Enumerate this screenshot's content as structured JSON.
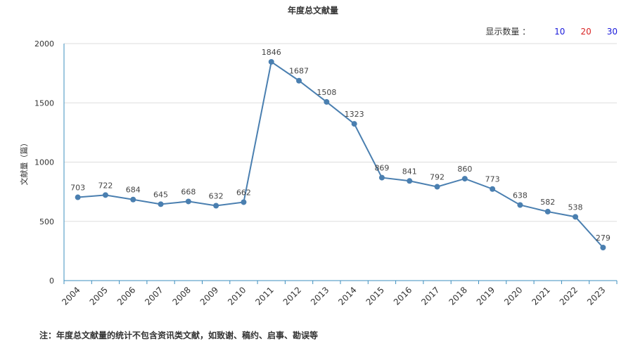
{
  "title": "年度总文献量",
  "count_selector": {
    "label": "显示数量 ：",
    "options": [
      {
        "label": "10",
        "color": "#1a1adb"
      },
      {
        "label": "20",
        "color": "#d92424"
      },
      {
        "label": "30",
        "color": "#1a1adb"
      }
    ]
  },
  "note": "注：年度总文献量的统计不包含资讯类文献，如致谢、稿约、启事、勘误等",
  "colors": {
    "line": "#4a7fb0",
    "axis": "#3d8fbf",
    "grid": "#dddddd"
  },
  "chart_data": {
    "type": "line",
    "title": "年度总文献量",
    "xlabel": "",
    "ylabel": "文献量（篇）",
    "ylim": [
      0,
      2000
    ],
    "yticks": [
      "0",
      "500",
      "1000",
      "1500",
      "2000"
    ],
    "categories": [
      "2004",
      "2005",
      "2006",
      "2007",
      "2008",
      "2009",
      "2010",
      "2011",
      "2012",
      "2013",
      "2014",
      "2015",
      "2016",
      "2017",
      "2018",
      "2019",
      "2020",
      "2021",
      "2022",
      "2023"
    ],
    "series": [
      {
        "values": [
          703,
          722,
          684,
          645,
          668,
          632,
          662,
          1846,
          1687,
          1508,
          1323,
          869,
          841,
          792,
          860,
          773,
          638,
          582,
          538,
          279
        ]
      }
    ],
    "grid": true
  }
}
